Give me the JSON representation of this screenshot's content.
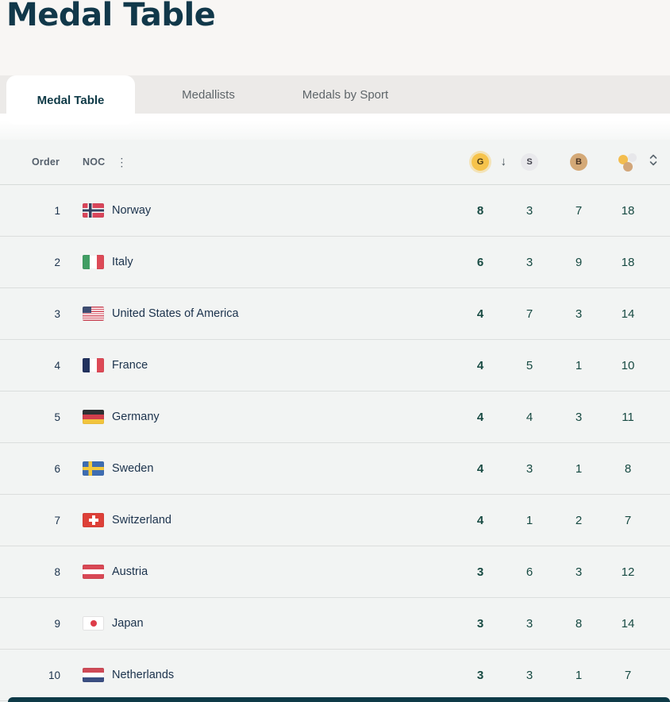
{
  "header": {
    "title": "Medal Table"
  },
  "tabs": [
    {
      "label": "Medal Table",
      "active": true
    },
    {
      "label": "Medallists",
      "active": false
    },
    {
      "label": "Medals by Sport",
      "active": false
    }
  ],
  "table": {
    "columns": {
      "order_label": "Order",
      "noc_label": "NOC",
      "gold_label": "G",
      "silver_label": "S",
      "bronze_label": "B",
      "sort_column": "gold",
      "sort_direction": "descending"
    },
    "rows": [
      {
        "order": 1,
        "noc": "Norway",
        "flag": "norway",
        "gold": 8,
        "silver": 3,
        "bronze": 7,
        "total": 18
      },
      {
        "order": 2,
        "noc": "Italy",
        "flag": "italy",
        "gold": 6,
        "silver": 3,
        "bronze": 9,
        "total": 18
      },
      {
        "order": 3,
        "noc": "United States of America",
        "flag": "united-states-of-america",
        "gold": 4,
        "silver": 7,
        "bronze": 3,
        "total": 14
      },
      {
        "order": 4,
        "noc": "France",
        "flag": "france",
        "gold": 4,
        "silver": 5,
        "bronze": 1,
        "total": 10
      },
      {
        "order": 5,
        "noc": "Germany",
        "flag": "germany",
        "gold": 4,
        "silver": 4,
        "bronze": 3,
        "total": 11
      },
      {
        "order": 6,
        "noc": "Sweden",
        "flag": "sweden",
        "gold": 4,
        "silver": 3,
        "bronze": 1,
        "total": 8
      },
      {
        "order": 7,
        "noc": "Switzerland",
        "flag": "switzerland",
        "gold": 4,
        "silver": 1,
        "bronze": 2,
        "total": 7
      },
      {
        "order": 8,
        "noc": "Austria",
        "flag": "austria",
        "gold": 3,
        "silver": 6,
        "bronze": 3,
        "total": 12
      },
      {
        "order": 9,
        "noc": "Japan",
        "flag": "japan",
        "gold": 3,
        "silver": 3,
        "bronze": 8,
        "total": 14
      },
      {
        "order": 10,
        "noc": "Netherlands",
        "flag": "netherlands",
        "gold": 3,
        "silver": 3,
        "bronze": 1,
        "total": 7
      }
    ]
  },
  "colors": {
    "accent_dark_teal": "#11384a",
    "gold": "#f6c34b",
    "silver": "#e9e9ec",
    "bronze": "#d4a977",
    "table_background": "#f2f4f3"
  }
}
